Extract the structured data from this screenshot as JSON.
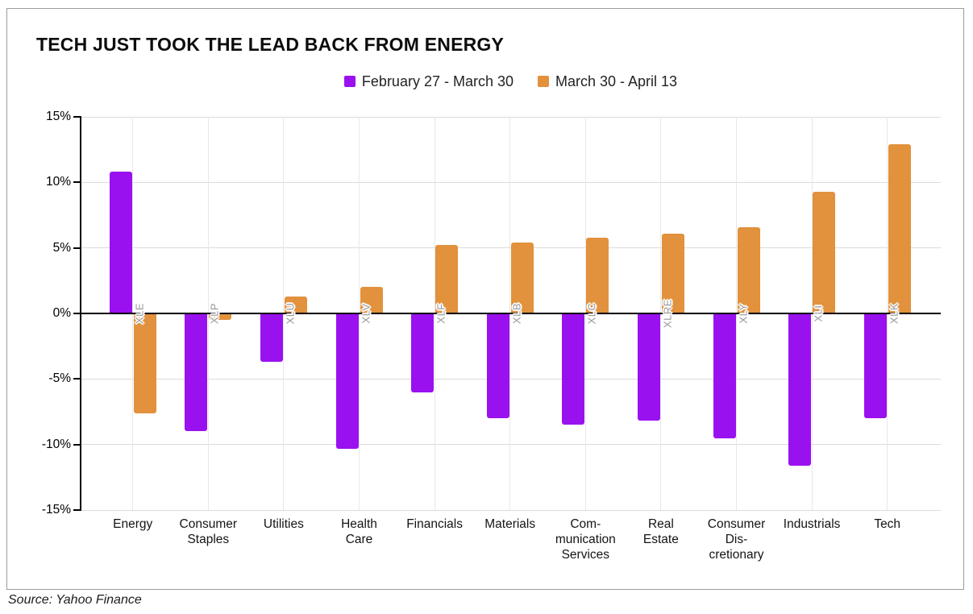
{
  "title": "TECH JUST TOOK THE LEAD BACK FROM ENERGY",
  "source": "Source: Yahoo Finance",
  "colors": {
    "purple": "#9A11F0",
    "orange": "#E2913C",
    "grid_h": "#DBDBDB",
    "grid_v": "#E8E8E8",
    "axis": "#000000",
    "frame_border": "#9C9C9C",
    "ticker_text": "#979797"
  },
  "chart_data": {
    "type": "bar",
    "title": "TECH JUST TOOK THE LEAD BACK FROM ENERGY",
    "categories": [
      "Energy",
      "Consumer\nStaples",
      "Utilities",
      "Health\nCare",
      "Financials",
      "Materials",
      "Com-\nmunication\nServices",
      "Real\nEstate",
      "Consumer\nDis-\ncretionary",
      "Industrials",
      "Tech"
    ],
    "tickers": [
      "XLE",
      "XLP",
      "XLU",
      "XLV",
      "XLF",
      "XLB",
      "XLC",
      "XLRE",
      "XLY",
      "XLI",
      "XLK"
    ],
    "series": [
      {
        "name": "February 27 - March 30",
        "color": "#9A11F0",
        "values": [
          10.8,
          -9.0,
          -3.7,
          -10.3,
          -6.0,
          -8.0,
          -8.5,
          -8.2,
          -9.5,
          -11.6,
          -8.0
        ]
      },
      {
        "name": "March 30 - April 13",
        "color": "#E2913C",
        "values": [
          -7.6,
          -0.5,
          1.3,
          2.0,
          5.2,
          5.4,
          5.8,
          6.1,
          6.6,
          9.3,
          12.9
        ]
      }
    ],
    "xlabel": "",
    "ylabel": "",
    "yticks": [
      15,
      10,
      5,
      0,
      -5,
      -10,
      -15
    ],
    "ytick_labels": [
      "15%",
      "10%",
      "5%",
      "0%",
      "-5%",
      "-10%",
      "-15%"
    ],
    "ylim": [
      -15,
      15
    ],
    "grid": true,
    "legend_position": "top"
  }
}
